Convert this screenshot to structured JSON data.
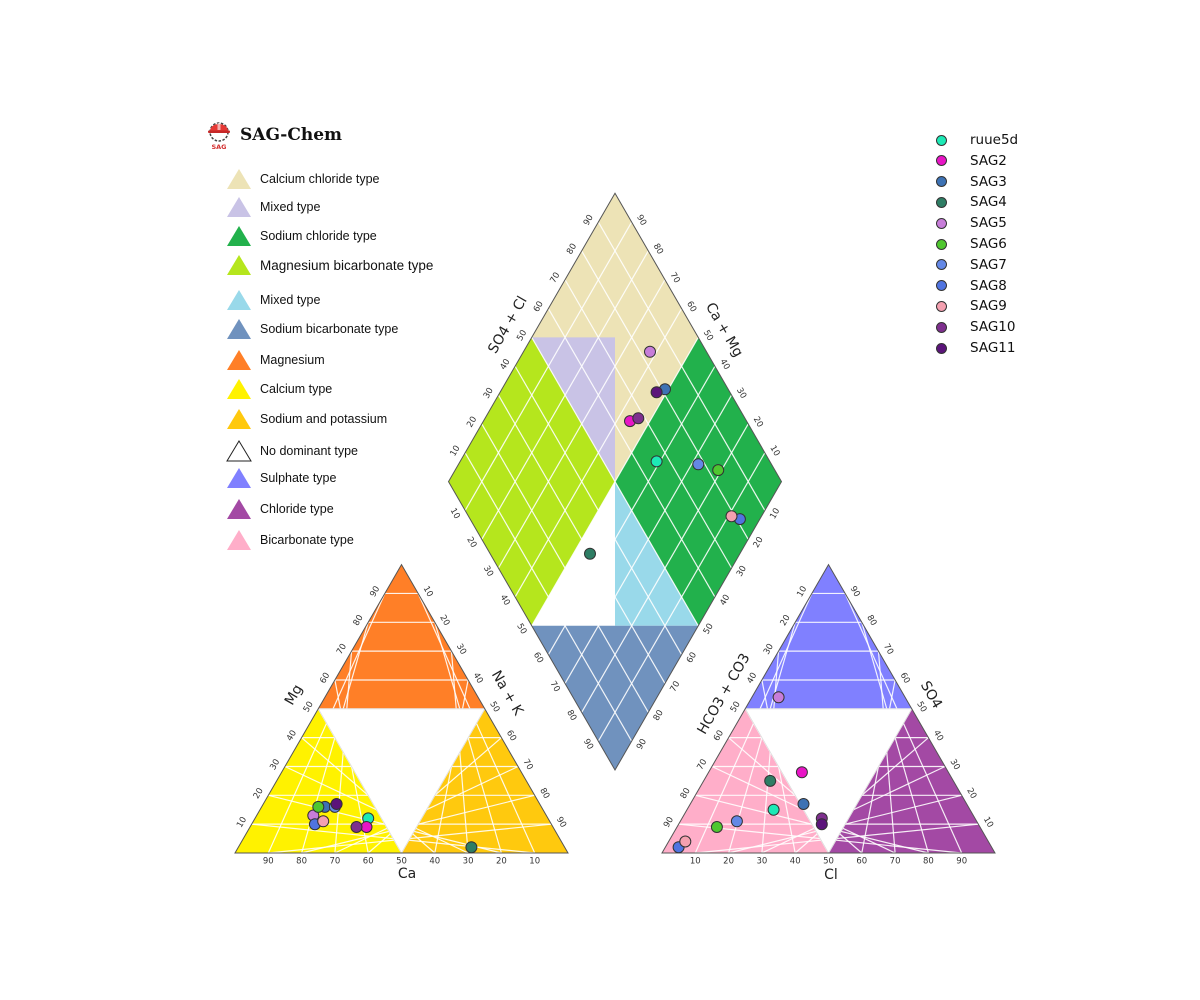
{
  "brand": {
    "title": "SAG-Chem",
    "logo_text": "SAG",
    "logo_icon": "hardhat-gear-icon"
  },
  "type_legend": [
    {
      "label": "Calcium chloride type",
      "color": "#ede3b6"
    },
    {
      "label": "Mixed type",
      "color": "#c9c3e6"
    },
    {
      "label": "Sodium chloride type",
      "color": "#22b14c"
    },
    {
      "label": "Magnesium bicarbonate type",
      "color": "#b5e61d"
    },
    {
      "label": "Mixed type",
      "color": "#99d9ea"
    },
    {
      "label": "Sodium bicarbonate type",
      "color": "#7092be"
    },
    {
      "label": "Magnesium",
      "color": "#ff7f27"
    },
    {
      "label": "Calcium  type",
      "color": "#fff200"
    },
    {
      "label": "Sodium and potassium",
      "color": "#ffc90e"
    },
    {
      "label": "No dominant type",
      "color": "#ffffff"
    },
    {
      "label": "Sulphate type",
      "color": "#8080ff"
    },
    {
      "label": "Chloride type",
      "color": "#a349a4"
    },
    {
      "label": "Bicarbonate type",
      "color": "#ffaec9"
    }
  ],
  "chart_data": {
    "type": "scatter",
    "subtype": "piper-diagram",
    "cation_triangle": {
      "bottom_label": "Ca",
      "left_label": "Mg",
      "right_label": "Na + K"
    },
    "anion_triangle": {
      "bottom_label": "Cl",
      "left_label": "HCO3 + CO3",
      "right_label": "SO4"
    },
    "diamond": {
      "left_label": "SO4 + Cl",
      "right_label": "Ca + Mg"
    },
    "ticks": [
      "10",
      "20",
      "30",
      "40",
      "50",
      "60",
      "70",
      "80",
      "90"
    ],
    "samples": [
      {
        "name": "ruue5d",
        "color": "#1de9b6",
        "Ca": 54,
        "Mg": 12,
        "NaK": 34,
        "Cl": 26,
        "SO4": 15,
        "HCO3": 59
      },
      {
        "name": "SAG2",
        "color": "#e815c6",
        "Ca": 56,
        "Mg": 9,
        "NaK": 35,
        "Cl": 28,
        "SO4": 28,
        "HCO3": 44
      },
      {
        "name": "SAG3",
        "color": "#3d72b4",
        "Ca": 65,
        "Mg": 16,
        "NaK": 19,
        "Cl": 34,
        "SO4": 17,
        "HCO3": 49
      },
      {
        "name": "SAG4",
        "color": "#2e7d64",
        "Ca": 28,
        "Mg": 2,
        "NaK": 70,
        "Cl": 20,
        "SO4": 25,
        "HCO3": 55
      },
      {
        "name": "SAG5",
        "color": "#c77dd9",
        "Ca": 70,
        "Mg": 13,
        "NaK": 17,
        "Cl": 8,
        "SO4": 54,
        "HCO3": 38
      },
      {
        "name": "SAG6",
        "color": "#4fc72f",
        "Ca": 67,
        "Mg": 16,
        "NaK": 17,
        "Cl": 12,
        "SO4": 9,
        "HCO3": 79
      },
      {
        "name": "SAG7",
        "color": "#6488e6",
        "Ca": 62,
        "Mg": 16,
        "NaK": 22,
        "Cl": 17,
        "SO4": 11,
        "HCO3": 72
      },
      {
        "name": "SAG8",
        "color": "#5074e0",
        "Ca": 71,
        "Mg": 10,
        "NaK": 19,
        "Cl": 4,
        "SO4": 2,
        "HCO3": 94
      },
      {
        "name": "SAG9",
        "color": "#f4a0b0",
        "Ca": 68,
        "Mg": 11,
        "NaK": 21,
        "Cl": 5,
        "SO4": 4,
        "HCO3": 91
      },
      {
        "name": "SAG10",
        "color": "#7e2f8e",
        "Ca": 59,
        "Mg": 9,
        "NaK": 32,
        "Cl": 42,
        "SO4": 12,
        "HCO3": 46
      },
      {
        "name": "SAG11",
        "color": "#5b147a",
        "Ca": 61,
        "Mg": 17,
        "NaK": 22,
        "Cl": 43,
        "SO4": 10,
        "HCO3": 47
      }
    ],
    "regions": {
      "cation_mg": "#ff7f27",
      "cation_ca": "#fff200",
      "cation_nak": "#ffc90e",
      "cation_none": "#ffffff",
      "anion_so4": "#8080ff",
      "anion_hco3": "#ffaec9",
      "anion_cl": "#a349a4",
      "anion_none": "#ffffff",
      "diamond_top": "#ede3b6",
      "diamond_left_upper": "#b5e61d",
      "diamond_center_upper": "#c9c3e6",
      "diamond_right": "#22b14c",
      "diamond_center_lower": "#99d9ea",
      "diamond_bottom": "#7092be"
    },
    "grid": true,
    "legend_position": "top-right"
  }
}
